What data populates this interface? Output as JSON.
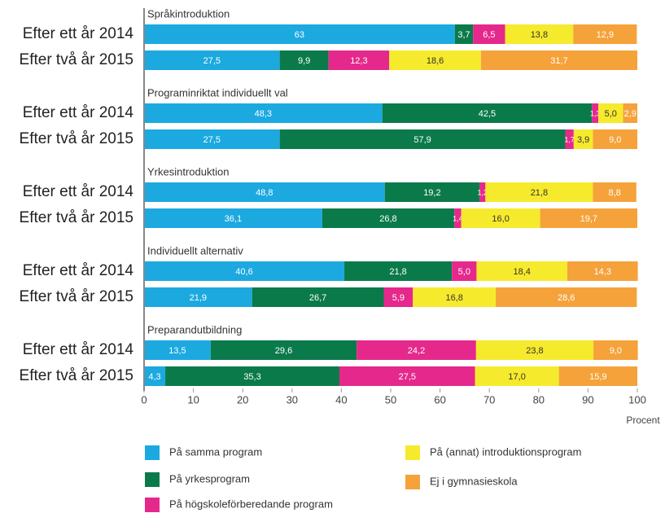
{
  "chart_data": {
    "type": "bar",
    "orientation": "horizontal",
    "stacked": true,
    "group_labels": [
      "Språkintroduktion",
      "Programinriktat individuellt val",
      "Yrkesintroduktion",
      "Individuellt alternativ",
      "Preparandutbildning"
    ],
    "categories": [
      "Efter ett år 2014",
      "Efter två år 2015",
      "Efter ett år 2014",
      "Efter två år 2015",
      "Efter ett år 2014",
      "Efter två år 2015",
      "Efter ett år 2014",
      "Efter två år 2015",
      "Efter ett år 2014",
      "Efter två år 2015"
    ],
    "series": [
      {
        "name": "På samma program",
        "color": "#1ba9e0",
        "label_color": "#ffffff",
        "values": [
          63,
          27.5,
          48.3,
          27.5,
          48.8,
          36.1,
          40.6,
          21.9,
          13.5,
          4.3
        ],
        "value_labels": [
          "63",
          "27,5",
          "48,3",
          "27,5",
          "48,8",
          "36,1",
          "40,6",
          "21,9",
          "13,5",
          "4,3"
        ]
      },
      {
        "name": "På yrkesprogram",
        "color": "#0b7a4b",
        "label_color": "#ffffff",
        "values": [
          3.7,
          9.9,
          42.5,
          57.9,
          19.2,
          26.8,
          21.8,
          26.7,
          29.6,
          35.3
        ],
        "value_labels": [
          "3,7",
          "9,9",
          "42,5",
          "57,9",
          "19,2",
          "26,8",
          "21,8",
          "26,7",
          "29,6",
          "35,3"
        ]
      },
      {
        "name": "På högskoleförberedande program",
        "color": "#e5288b",
        "label_color": "#ffffff",
        "values": [
          6.5,
          12.3,
          1.3,
          1.7,
          1.2,
          1.4,
          5.0,
          5.9,
          24.2,
          27.5
        ],
        "value_labels": [
          "6,5",
          "12,3",
          "1,3",
          "1,7",
          "1,2",
          "1,4",
          "5,0",
          "5,9",
          "24,2",
          "27,5"
        ]
      },
      {
        "name": "På (annat) introduktionsprogram",
        "color": "#f6ea2c",
        "label_color": "#333333",
        "values": [
          13.8,
          18.6,
          5.0,
          3.9,
          21.8,
          16.0,
          18.4,
          16.8,
          23.8,
          17.0
        ],
        "value_labels": [
          "13,8",
          "18,6",
          "5,0",
          "3,9",
          "21,8",
          "16,0",
          "18,4",
          "16,8",
          "23,8",
          "17,0"
        ]
      },
      {
        "name": "Ej i gymnasieskola",
        "color": "#f5a23b",
        "label_color": "#ffffff",
        "values": [
          12.9,
          31.7,
          2.9,
          9.0,
          8.8,
          19.7,
          14.3,
          28.6,
          9.0,
          15.9
        ],
        "value_labels": [
          "12,9",
          "31,7",
          "2,9",
          "9,0",
          "8,8",
          "19,7",
          "14,3",
          "28,6",
          "9,0",
          "15,9"
        ]
      }
    ],
    "xlim": [
      0,
      100
    ],
    "xticks": [
      0,
      10,
      20,
      30,
      40,
      50,
      60,
      70,
      80,
      90,
      100
    ],
    "x_label": "Procent"
  }
}
